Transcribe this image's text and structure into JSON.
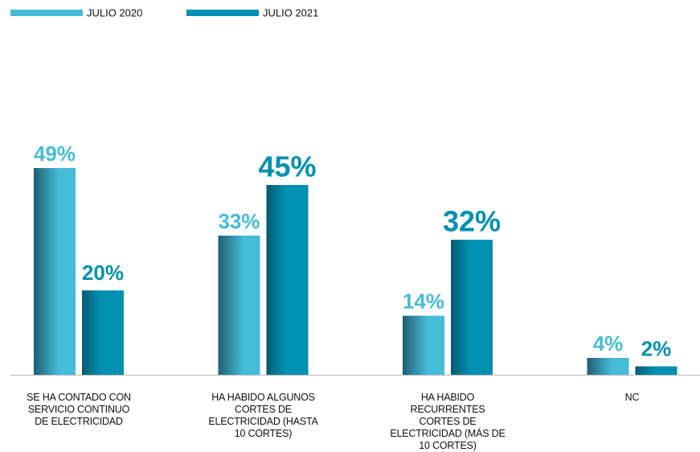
{
  "chart_data": {
    "type": "bar",
    "categories": [
      "SE HA CONTADO CON SERVICIO CONTINUO DE ELECTRICIDAD",
      "HA HABIDO ALGUNOS CORTES DE ELECTRICIDAD (HASTA 10 CORTES)",
      "HA HABIDO RECURRENTES CORTES DE ELECTRICIDAD (MÁS DE 10 CORTES)",
      "NC"
    ],
    "series": [
      {
        "name": "JULIO 2020",
        "color": "#45bcd8",
        "values": [
          49,
          33,
          14,
          4
        ],
        "value_labels": [
          "49%",
          "33%",
          "14%",
          "4%"
        ]
      },
      {
        "name": "JULIO 2021",
        "color": "#0090b0",
        "values": [
          20,
          45,
          32,
          2
        ],
        "value_labels": [
          "20%",
          "45%",
          "32%",
          "2%"
        ]
      }
    ],
    "legend": "top-left"
  }
}
